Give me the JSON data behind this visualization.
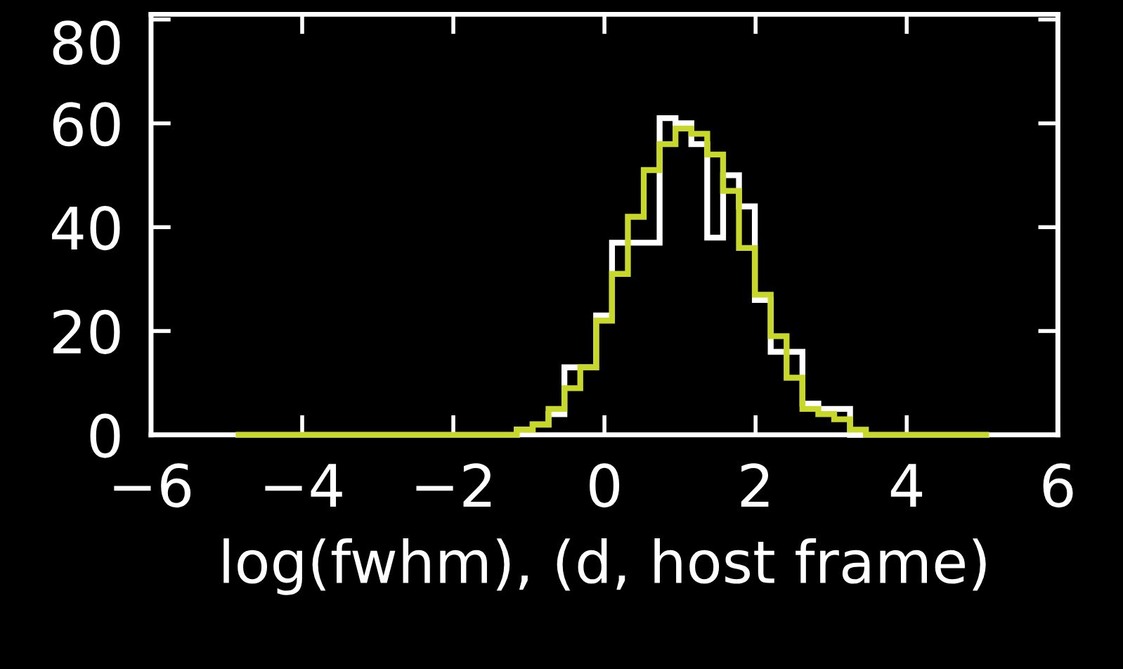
{
  "chart_data": {
    "type": "histogram",
    "xlabel": "log(fwhm), (d, host frame)",
    "bins": [
      -4.88,
      -1.16,
      -0.95,
      -0.74,
      -0.53,
      -0.32,
      -0.11,
      0.1,
      0.31,
      0.52,
      0.73,
      0.94,
      1.15,
      1.36,
      1.57,
      1.78,
      1.99,
      2.2,
      2.41,
      2.62,
      2.83,
      3.04,
      3.25,
      3.46,
      5.09
    ],
    "series": [
      {
        "color": "#c8d82a",
        "values": [
          0,
          1,
          2,
          5,
          9,
          13,
          22,
          31,
          42,
          51,
          56,
          59,
          58,
          54,
          47,
          36,
          27,
          19,
          11,
          5,
          4,
          3,
          1,
          0
        ]
      },
      {
        "color": "#ffffff",
        "values": [
          0,
          1,
          2,
          4,
          13,
          13,
          23,
          37,
          37,
          37,
          61,
          60,
          56,
          38,
          50,
          44,
          26,
          16,
          16,
          6,
          5,
          5,
          0,
          0
        ]
      }
    ],
    "xlim": [
      -6,
      6
    ],
    "xticks": [
      {
        "value": -6,
        "label": "−6"
      },
      {
        "value": -4,
        "label": "−4"
      },
      {
        "value": -2,
        "label": "−2"
      },
      0,
      2,
      4,
      6
    ],
    "ylim": [
      0,
      81
    ],
    "yticks": [
      0,
      20,
      40,
      60,
      80
    ],
    "grid": false
  }
}
